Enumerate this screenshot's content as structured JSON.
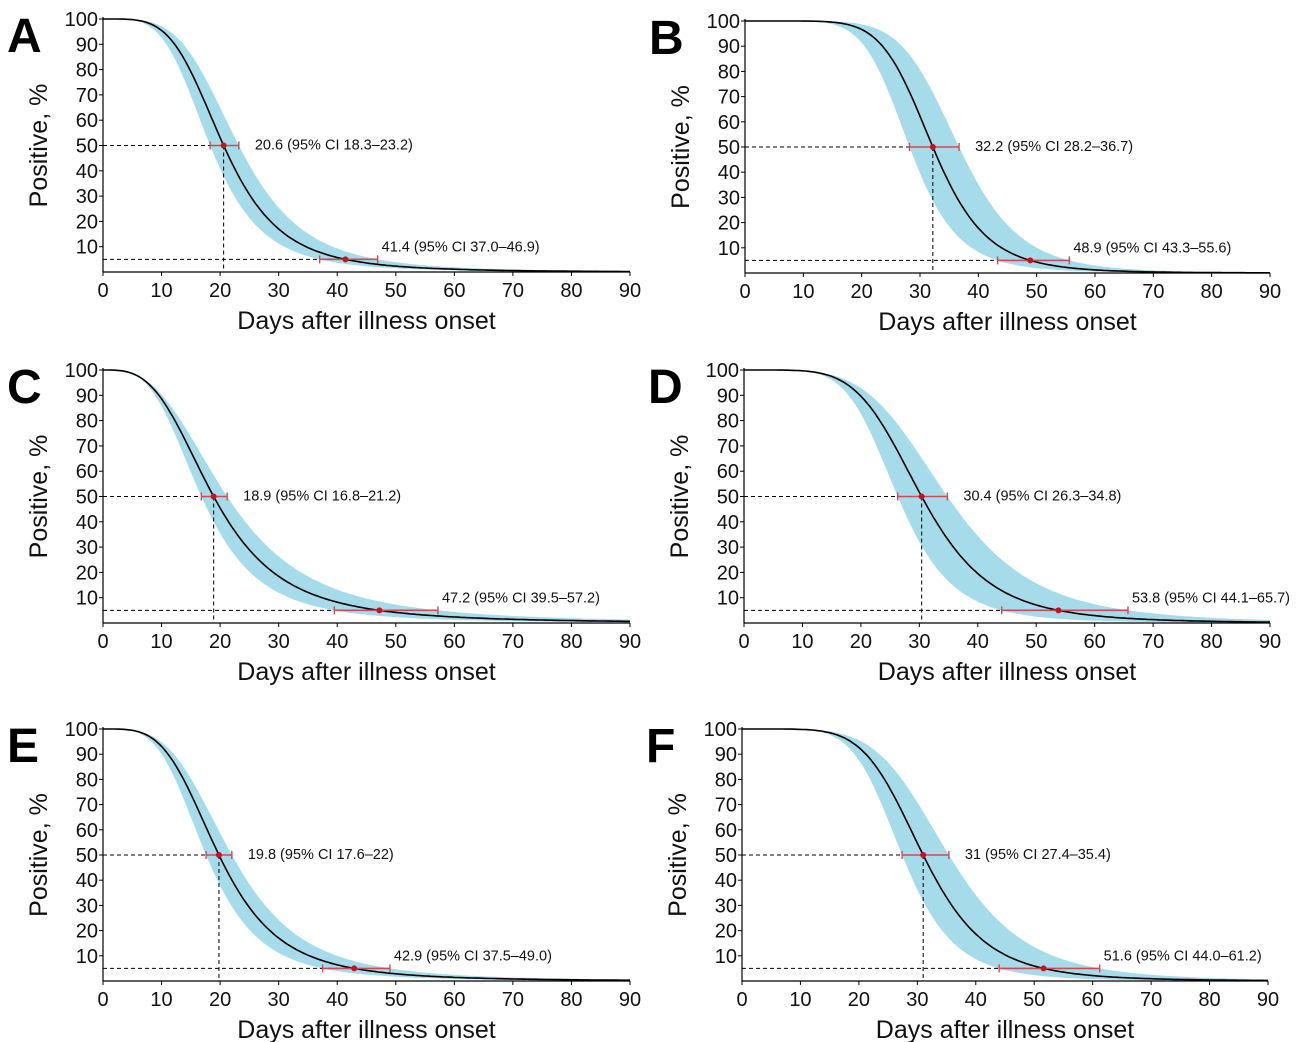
{
  "chart_data": [
    {
      "panel": "A",
      "type": "line",
      "xlabel": "Days after illness onset",
      "ylabel": "Positive, %",
      "xlim": [
        0,
        90
      ],
      "ylim": [
        0,
        100
      ],
      "xticks": [
        "0",
        "10",
        "20",
        "30",
        "40",
        "50",
        "60",
        "70",
        "80",
        "90"
      ],
      "yticks": [
        "10",
        "20",
        "30",
        "40",
        "50",
        "60",
        "70",
        "80",
        "90",
        "100"
      ],
      "median": 20.6,
      "median_ci": [
        18.3,
        23.2
      ],
      "median_label": "20.6 (95% CI 18.3–23.2)",
      "p95": 41.4,
      "p95_ci": [
        37.0,
        46.9
      ],
      "p95_label": "41.4 (95% CI 37.0–46.9)"
    },
    {
      "panel": "B",
      "type": "line",
      "xlabel": "Days after illness onset",
      "ylabel": "Positive, %",
      "xlim": [
        0,
        90
      ],
      "ylim": [
        0,
        100
      ],
      "xticks": [
        "0",
        "10",
        "20",
        "30",
        "40",
        "50",
        "60",
        "70",
        "80",
        "90"
      ],
      "yticks": [
        "10",
        "20",
        "30",
        "40",
        "50",
        "60",
        "70",
        "80",
        "90",
        "100"
      ],
      "median": 32.2,
      "median_ci": [
        28.2,
        36.7
      ],
      "median_label": "32.2 (95% CI 28.2–36.7)",
      "p95": 48.9,
      "p95_ci": [
        43.3,
        55.6
      ],
      "p95_label": "48.9 (95% CI 43.3–55.6)"
    },
    {
      "panel": "C",
      "type": "line",
      "xlabel": "Days after illness onset",
      "ylabel": "Positive, %",
      "xlim": [
        0,
        90
      ],
      "ylim": [
        0,
        100
      ],
      "xticks": [
        "0",
        "10",
        "20",
        "30",
        "40",
        "50",
        "60",
        "70",
        "80",
        "90"
      ],
      "yticks": [
        "10",
        "20",
        "30",
        "40",
        "50",
        "60",
        "70",
        "80",
        "90",
        "100"
      ],
      "median": 18.9,
      "median_ci": [
        16.8,
        21.2
      ],
      "median_label": "18.9  (95% CI 16.8–21.2)",
      "p95": 47.2,
      "p95_ci": [
        39.5,
        57.2
      ],
      "p95_label": "47.2 (95% CI 39.5–57.2)"
    },
    {
      "panel": "D",
      "type": "line",
      "xlabel": "Days after illness onset",
      "ylabel": "Positive, %",
      "xlim": [
        0,
        90
      ],
      "ylim": [
        0,
        100
      ],
      "xticks": [
        "0",
        "10",
        "20",
        "30",
        "40",
        "50",
        "60",
        "70",
        "80",
        "90"
      ],
      "yticks": [
        "10",
        "20",
        "30",
        "40",
        "50",
        "60",
        "70",
        "80",
        "90",
        "100"
      ],
      "median": 30.4,
      "median_ci": [
        26.3,
        34.8
      ],
      "median_label": "30.4 (95% CI 26.3–34.8)",
      "p95": 53.8,
      "p95_ci": [
        44.1,
        65.7
      ],
      "p95_label": "53.8 (95% CI 44.1–65.7)"
    },
    {
      "panel": "E",
      "type": "line",
      "xlabel": "Days after illness onset",
      "ylabel": "Positive, %",
      "xlim": [
        0,
        90
      ],
      "ylim": [
        0,
        100
      ],
      "xticks": [
        "0",
        "10",
        "20",
        "30",
        "40",
        "50",
        "60",
        "70",
        "80",
        "90"
      ],
      "yticks": [
        "10",
        "20",
        "30",
        "40",
        "50",
        "60",
        "70",
        "80",
        "90",
        "100"
      ],
      "median": 19.8,
      "median_ci": [
        17.6,
        22.0
      ],
      "median_label": "19.8 (95% CI 17.6–22)",
      "p95": 42.9,
      "p95_ci": [
        37.5,
        49.0
      ],
      "p95_label": "42.9 (95% CI 37.5–49.0)"
    },
    {
      "panel": "F",
      "type": "line",
      "xlabel": "Days after illness onset",
      "ylabel": "Positive, %",
      "xlim": [
        0,
        90
      ],
      "ylim": [
        0,
        100
      ],
      "xticks": [
        "0",
        "10",
        "20",
        "30",
        "40",
        "50",
        "60",
        "70",
        "80",
        "90"
      ],
      "yticks": [
        "10",
        "20",
        "30",
        "40",
        "50",
        "60",
        "70",
        "80",
        "90",
        "100"
      ],
      "median": 31.0,
      "median_ci": [
        27.4,
        35.4
      ],
      "median_label": "31 (95% CI 27.4–35.4)",
      "p95": 51.6,
      "p95_ci": [
        44.0,
        61.2
      ],
      "p95_label": "51.6 (95% CI 44.0–61.2)"
    }
  ],
  "colors": {
    "band": "#a6dcea",
    "curve": "#000000",
    "marker": "#c0141e",
    "ci_bar": "#d04a55",
    "guide": "#000000"
  }
}
